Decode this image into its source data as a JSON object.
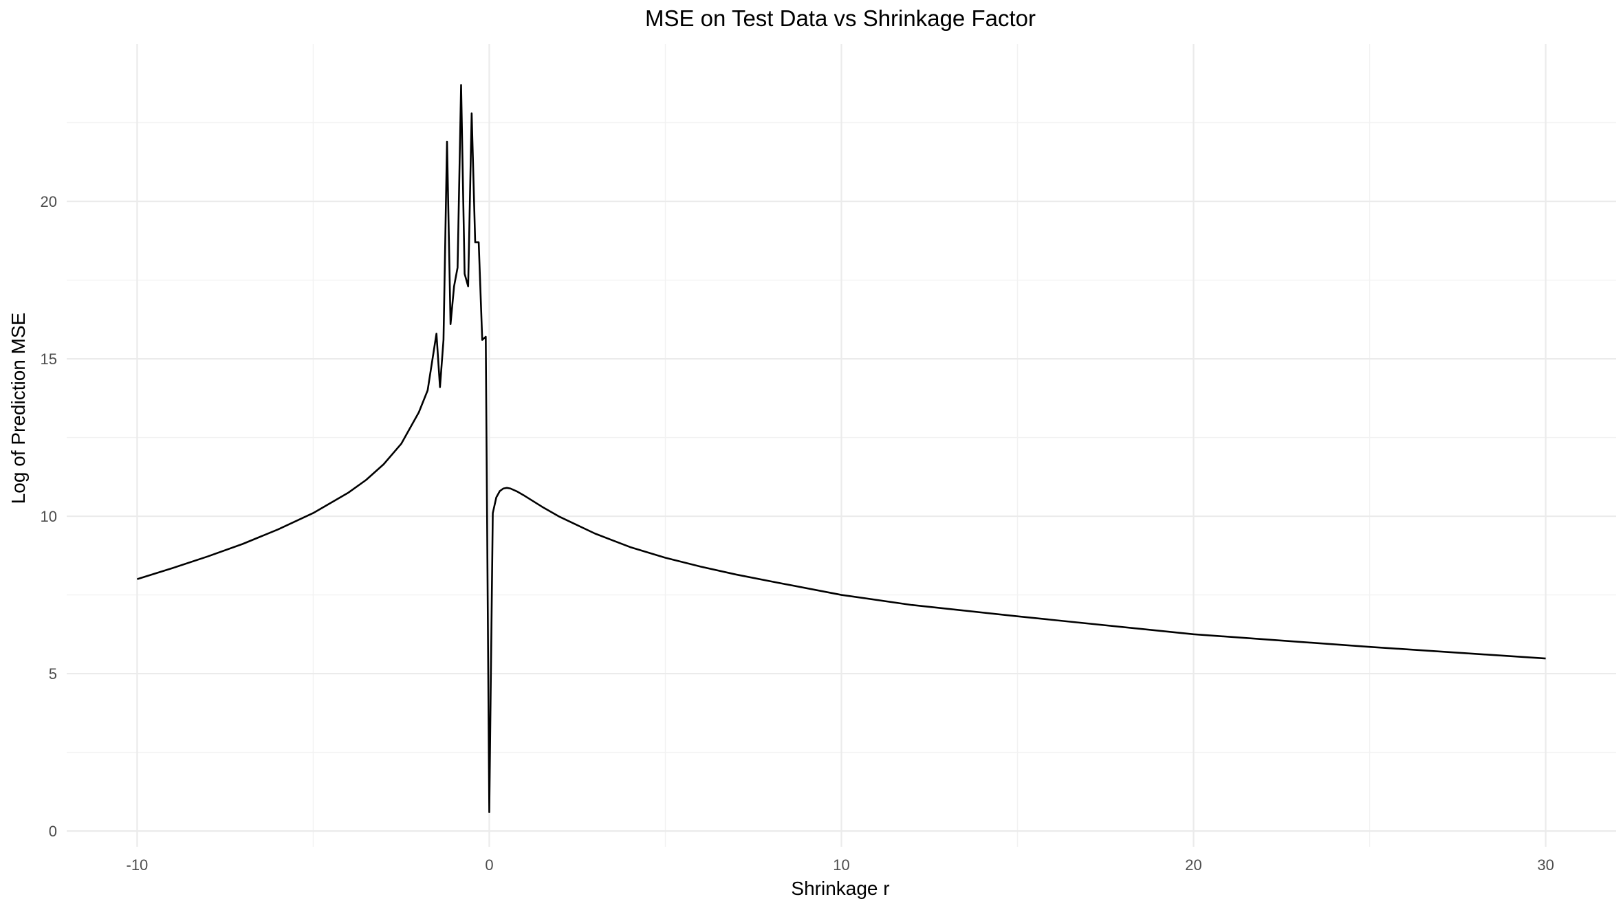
{
  "chart_data": {
    "type": "line",
    "title": "MSE on Test Data vs Shrinkage Factor",
    "xlabel": "Shrinkage r",
    "ylabel": "Log of Prediction MSE",
    "xlim": [
      -12,
      32
    ],
    "ylim": [
      -0.5,
      25
    ],
    "x_ticks": [
      -10,
      0,
      10,
      20,
      30
    ],
    "x_tick_labels": [
      "-10",
      "0",
      "10",
      "20",
      "30"
    ],
    "y_ticks": [
      0,
      5,
      10,
      15,
      20
    ],
    "y_tick_labels": [
      "0",
      "5",
      "10",
      "15",
      "20"
    ],
    "grid": true,
    "legend": "none",
    "colors": {
      "line": "#000000",
      "grid": "#ebebeb",
      "text": "#4d4d4d"
    },
    "series": [
      {
        "x": [
          -10,
          -9,
          -8,
          -7,
          -6,
          -5,
          -4,
          -3.5,
          -3,
          -2.5,
          -2,
          -1.75,
          -1.5,
          -1.4,
          -1.3,
          -1.2,
          -1.1,
          -1.0,
          -0.9,
          -0.8,
          -0.7,
          -0.6,
          -0.5,
          -0.4,
          -0.3,
          -0.2,
          -0.1,
          0.0,
          0.1,
          0.2,
          0.3,
          0.4,
          0.5,
          0.6,
          0.8,
          1.0,
          1.5,
          2,
          3,
          4,
          5,
          6,
          7,
          8,
          10,
          12,
          15,
          20,
          25,
          30
        ],
        "y": [
          8.0,
          8.35,
          8.72,
          9.12,
          9.58,
          10.1,
          10.75,
          11.15,
          11.65,
          12.3,
          13.3,
          14.0,
          15.8,
          14.1,
          15.6,
          21.9,
          16.1,
          17.3,
          17.9,
          23.7,
          17.7,
          17.3,
          22.8,
          18.7,
          18.7,
          15.6,
          15.7,
          0.6,
          10.1,
          10.6,
          10.8,
          10.88,
          10.9,
          10.88,
          10.78,
          10.65,
          10.3,
          9.98,
          9.45,
          9.02,
          8.68,
          8.4,
          8.15,
          7.93,
          7.5,
          7.18,
          6.82,
          6.25,
          5.85,
          5.48
        ]
      }
    ]
  }
}
